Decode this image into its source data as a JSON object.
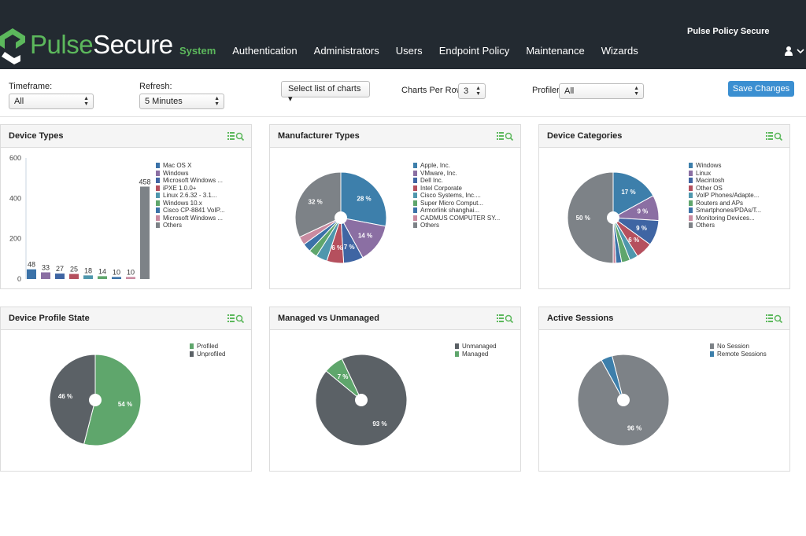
{
  "header": {
    "brand_a": "Pulse",
    "brand_b": "Secure",
    "product": "Pulse Policy Secure",
    "nav": [
      "System",
      "Authentication",
      "Administrators",
      "Users",
      "Endpoint Policy",
      "Maintenance",
      "Wizards"
    ],
    "active_nav": "System"
  },
  "filters": {
    "timeframe_label": "Timeframe:",
    "timeframe_value": "All",
    "refresh_label": "Refresh:",
    "refresh_value": "5 Minutes",
    "charts_button": "Select list of charts ▾",
    "per_row_label": "Charts Per Row:",
    "per_row_value": "3",
    "profiler_label": "Profiler:",
    "profiler_value": "All",
    "save_label": "Save Changes"
  },
  "colors": {
    "blue": "#3d7fab",
    "purple": "#8b6fa3",
    "navy": "#3f65a3",
    "red": "#b5505e",
    "teal": "#4f97ad",
    "green": "#5fa66c",
    "steel": "#3b72a8",
    "pink": "#c98aa0",
    "gray": "#7d8287",
    "darkgray": "#5b6166"
  },
  "chart_data": [
    {
      "type": "bar",
      "title": "Device Types",
      "categories": [
        "Mac OS X",
        "Windows",
        "Microsoft Windows ...",
        "iPXE 1.0.0+",
        "Linux 2.6.32 - 3.1...",
        "Windows 10.x",
        "Cisco CP-8841 VoIP...",
        "Microsoft Windows ...",
        "Others"
      ],
      "values": [
        48,
        33,
        27,
        25,
        18,
        14,
        10,
        10,
        458
      ],
      "colors": [
        "#3b72a8",
        "#8b6fa3",
        "#3f65a3",
        "#b5505e",
        "#4f97ad",
        "#5fa66c",
        "#3b72a8",
        "#c98aa0",
        "#7d8287"
      ],
      "y_ticks": [
        0,
        200,
        400,
        600
      ],
      "ylim": [
        0,
        600
      ],
      "legend": "right"
    },
    {
      "type": "pie",
      "title": "Manufacturer Types",
      "labels": [
        "Apple, Inc.",
        "VMware, Inc.",
        "Dell Inc.",
        "Intel Corporate",
        "Cisco Systems, Inc....",
        "Super Micro Comput...",
        "Armorlink shanghai...",
        "CADMUS COMPUTER SY...",
        "Others"
      ],
      "values": [
        28,
        14,
        7,
        6,
        4,
        3,
        3,
        3,
        32
      ],
      "value_labels": [
        "28 %",
        "14 %",
        "7 %",
        "6 %",
        "",
        "",
        "",
        "",
        "32 %"
      ],
      "colors": [
        "#3d7fab",
        "#8b6fa3",
        "#3f65a3",
        "#b5505e",
        "#4f97ad",
        "#5fa66c",
        "#3b72a8",
        "#c98aa0",
        "#7d8287"
      ],
      "legend": "right"
    },
    {
      "type": "pie",
      "title": "Device Categories",
      "labels": [
        "Windows",
        "Linux",
        "Macintosh",
        "Other OS",
        "VoIP Phones/Adapte...",
        "Routers and APs",
        "Smartphones/PDAs/T...",
        "Monitoring Devices...",
        "Others"
      ],
      "values": [
        17,
        9,
        9,
        6,
        3,
        3,
        2,
        1,
        50
      ],
      "value_labels": [
        "17 %",
        "9 %",
        "9 %",
        "6 %",
        "",
        "",
        "",
        "",
        "50 %"
      ],
      "colors": [
        "#3d7fab",
        "#8b6fa3",
        "#3f65a3",
        "#b5505e",
        "#4f97ad",
        "#5fa66c",
        "#3b72a8",
        "#c98aa0",
        "#7d8287"
      ],
      "legend": "right"
    },
    {
      "type": "pie",
      "title": "Device Profile State",
      "labels": [
        "Profiled",
        "Unprofiled"
      ],
      "values": [
        54,
        46
      ],
      "value_labels": [
        "54 %",
        "46 %"
      ],
      "colors": [
        "#5fa66c",
        "#5b6166"
      ],
      "legend": "right"
    },
    {
      "type": "pie",
      "title": "Managed vs Unmanaged",
      "labels": [
        "Unmanaged",
        "Managed"
      ],
      "values": [
        93,
        7
      ],
      "value_labels": [
        "93 %",
        "7 %"
      ],
      "colors": [
        "#5b6166",
        "#5fa66c"
      ],
      "start_value": 7,
      "legend": "right"
    },
    {
      "type": "pie",
      "title": "Active Sessions",
      "labels": [
        "No Session",
        "Remote Sessions"
      ],
      "values": [
        96,
        4
      ],
      "value_labels": [
        "96 %",
        ""
      ],
      "colors": [
        "#7d8287",
        "#3d7fab"
      ],
      "start_value": 4,
      "legend": "right"
    }
  ]
}
